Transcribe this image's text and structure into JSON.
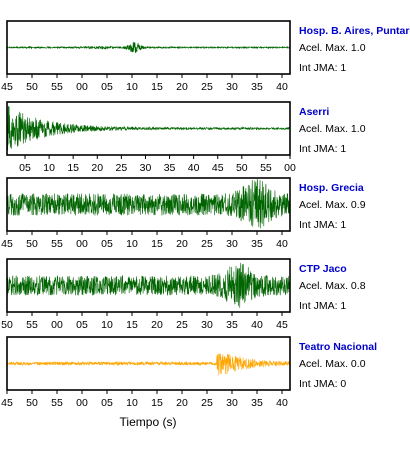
{
  "chart_data": {
    "type": "line",
    "xlabel": "Tiempo (s)",
    "panels": [
      {
        "station": "Hosp. B. Aires, Puntare",
        "accel_label": "Acel. Max. 1.0",
        "intensity_label": "Int JMA: 1",
        "color": "#006400",
        "tick_labels": [
          "45",
          "50",
          "55",
          "00",
          "05",
          "10",
          "15",
          "20",
          "25",
          "30",
          "35",
          "40"
        ],
        "first_tick_index": 0,
        "tick_step": 5,
        "pattern": "spike",
        "event_position": 0.45,
        "amplitude": 0.12
      },
      {
        "station": "Aserri",
        "accel_label": "Acel. Max. 1.0",
        "intensity_label": "Int JMA: 1",
        "color": "#006400",
        "tick_labels": [
          "05",
          "10",
          "15",
          "20",
          "25",
          "30",
          "35",
          "40",
          "45",
          "50",
          "55",
          "00"
        ],
        "first_tick_index": 1,
        "tick_step": 5,
        "pattern": "decay",
        "event_position": 0.0,
        "amplitude": 0.5
      },
      {
        "station": "Hosp. Grecia",
        "accel_label": "Acel. Max. 0.9",
        "intensity_label": "Int JMA: 1",
        "color": "#006400",
        "tick_labels": [
          "45",
          "50",
          "55",
          "00",
          "05",
          "10",
          "15",
          "20",
          "25",
          "30",
          "35",
          "40"
        ],
        "first_tick_index": 0,
        "tick_step": 5,
        "pattern": "noise_late",
        "event_position": 0.88,
        "amplitude": 0.5
      },
      {
        "station": "CTP Jaco",
        "accel_label": "Acel. Max. 0.8",
        "intensity_label": "Int JMA: 1",
        "color": "#006400",
        "tick_labels": [
          "50",
          "55",
          "00",
          "05",
          "10",
          "15",
          "20",
          "25",
          "30",
          "35",
          "40",
          "45"
        ],
        "first_tick_index": 0,
        "tick_step": 5,
        "pattern": "noise_late",
        "event_position": 0.82,
        "amplitude": 0.45
      },
      {
        "station": "Teatro Nacional",
        "accel_label": "Acel. Max. 0.0",
        "intensity_label": "Int JMA: 0",
        "color": "#FFA500",
        "tick_labels": [
          "45",
          "50",
          "55",
          "00",
          "05",
          "10",
          "15",
          "20",
          "25",
          "30",
          "35",
          "40"
        ],
        "first_tick_index": 0,
        "tick_step": 5,
        "pattern": "burst_late",
        "event_position": 0.77,
        "amplitude": 0.2
      }
    ]
  },
  "colors": {
    "station_name": "#0000CC",
    "text": "#000000",
    "frame": "#000000"
  }
}
